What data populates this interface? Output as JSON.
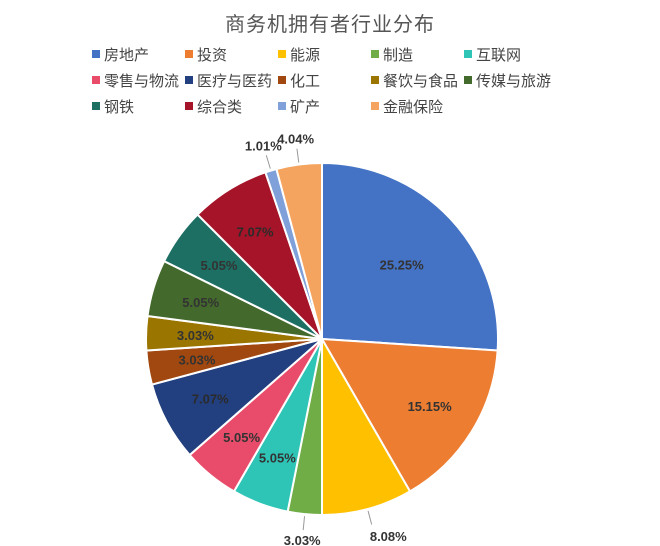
{
  "chart_data": {
    "type": "pie",
    "title": "商务机拥有者行业分布",
    "legend_position": "top",
    "start": "top, clockwise",
    "slices": [
      {
        "name": "房地产",
        "value": 25.25,
        "label": "25.25%",
        "color": "#4472C4"
      },
      {
        "name": "投资",
        "value": 15.15,
        "label": "15.15%",
        "color": "#ED7D31"
      },
      {
        "name": "能源",
        "value": 8.08,
        "label": "8.08%",
        "color": "#FFC000"
      },
      {
        "name": "制造",
        "value": 3.03,
        "label": "3.03%",
        "color": "#70AD47"
      },
      {
        "name": "互联网",
        "value": 5.05,
        "label": "5.05%",
        "color": "#2EC4B6"
      },
      {
        "name": "零售与物流",
        "value": 5.05,
        "label": "5.05%",
        "color": "#E84C6A"
      },
      {
        "name": "医疗与医药",
        "value": 7.07,
        "label": "7.07%",
        "color": "#223F7F"
      },
      {
        "name": "化工",
        "value": 3.03,
        "label": "3.03%",
        "color": "#A0480F"
      },
      {
        "name": "餐饮与食品",
        "value": 3.03,
        "label": "3.03%",
        "color": "#9A7500"
      },
      {
        "name": "传媒与旅游",
        "value": 5.05,
        "label": "5.05%",
        "color": "#44692C"
      },
      {
        "name": "钢铁",
        "value": 5.05,
        "label": "5.05%",
        "color": "#1D6F63"
      },
      {
        "name": "综合类",
        "value": 7.07,
        "label": "7.07%",
        "color": "#A51428"
      },
      {
        "name": "矿产",
        "value": 1.01,
        "label": "1.01%",
        "color": "#7FA0D8"
      },
      {
        "name": "金融保险",
        "value": 4.04,
        "label": "4.04%",
        "color": "#F4A45E"
      }
    ]
  }
}
